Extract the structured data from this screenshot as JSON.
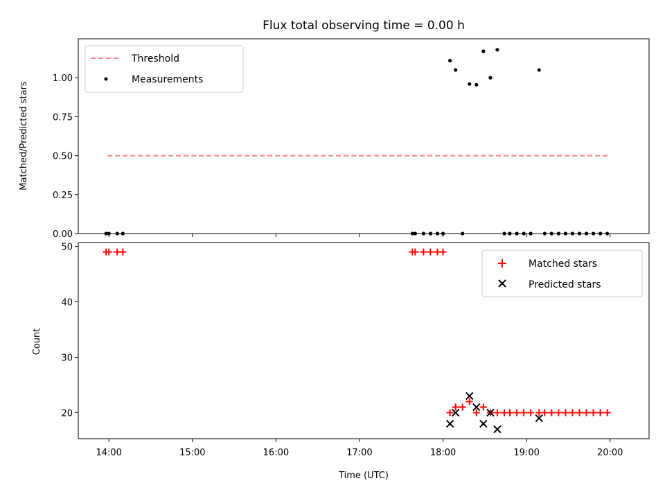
{
  "colors": {
    "threshold": "#ff7f7f",
    "measurements": "#000000",
    "matched": "#ff0000",
    "predicted": "#000000"
  },
  "chart_data": [
    {
      "type": "scatter",
      "title": "Flux total observing time = 0.00 h",
      "xlabel": "",
      "ylabel": "Matched/Predicted stars",
      "xlim": [
        "13:38",
        "20:28"
      ],
      "ylim": [
        0,
        1.25
      ],
      "yticks": [
        "0.00",
        "0.25",
        "0.50",
        "0.75",
        "1.00"
      ],
      "legend": {
        "placement": "upper-left",
        "entries": [
          "Threshold",
          "Measurements"
        ]
      },
      "series": [
        {
          "name": "Threshold",
          "kind": "line",
          "x": [
            "13:59",
            "19:59"
          ],
          "y": [
            0.5,
            0.5
          ]
        },
        {
          "name": "Measurements",
          "kind": "scatter",
          "x": [
            "13:58",
            "14:00",
            "14:06",
            "14:10",
            "17:38",
            "17:40",
            "17:46",
            "17:51",
            "17:56",
            "18:00",
            "18:05",
            "18:09",
            "18:14",
            "18:19",
            "18:24",
            "18:29",
            "18:34",
            "18:39",
            "18:44",
            "18:48",
            "18:53",
            "18:58",
            "19:03",
            "19:09",
            "19:13",
            "19:18",
            "19:23",
            "19:28",
            "19:33",
            "19:38",
            "19:43",
            "19:48",
            "19:53",
            "19:58"
          ],
          "y": [
            0,
            0,
            0,
            0,
            0,
            0,
            0,
            0,
            0,
            0,
            1.11,
            1.05,
            0,
            0.96,
            0.955,
            1.17,
            1.0,
            1.18,
            0,
            0,
            0,
            0,
            0,
            1.05,
            0,
            0,
            0,
            0,
            0,
            0,
            0,
            0,
            0,
            0
          ]
        }
      ]
    },
    {
      "type": "scatter",
      "title": "",
      "xlabel": "Time (UTC)",
      "ylabel": "Count",
      "xlim": [
        "13:38",
        "20:28"
      ],
      "ylim": [
        15.3,
        50.7
      ],
      "yticks": [
        "20",
        "30",
        "40",
        "50"
      ],
      "xticks": [
        "14:00",
        "15:00",
        "16:00",
        "17:00",
        "18:00",
        "19:00",
        "20:00"
      ],
      "legend": {
        "placement": "upper-right",
        "entries": [
          "Matched stars",
          "Predicted stars"
        ]
      },
      "series": [
        {
          "name": "Matched stars",
          "kind": "plus",
          "x": [
            "13:58",
            "14:00",
            "14:06",
            "14:10",
            "17:38",
            "17:40",
            "17:46",
            "17:51",
            "17:56",
            "18:00",
            "18:05",
            "18:09",
            "18:14",
            "18:19",
            "18:24",
            "18:29",
            "18:34",
            "18:39",
            "18:44",
            "18:48",
            "18:53",
            "18:58",
            "19:03",
            "19:09",
            "19:13",
            "19:18",
            "19:23",
            "19:28",
            "19:33",
            "19:38",
            "19:43",
            "19:48",
            "19:53",
            "19:58"
          ],
          "y": [
            49,
            49,
            49,
            49,
            49,
            49,
            49,
            49,
            49,
            49,
            20,
            21,
            21,
            22,
            20,
            21,
            20,
            20,
            20,
            20,
            20,
            20,
            20,
            20,
            20,
            20,
            20,
            20,
            20,
            20,
            20,
            20,
            20,
            20
          ]
        },
        {
          "name": "Predicted stars",
          "kind": "x",
          "x": [
            "18:05",
            "18:09",
            "18:19",
            "18:24",
            "18:29",
            "18:34",
            "18:39",
            "19:09"
          ],
          "y": [
            18,
            20,
            23,
            21,
            18,
            20,
            17,
            19
          ]
        }
      ]
    }
  ]
}
